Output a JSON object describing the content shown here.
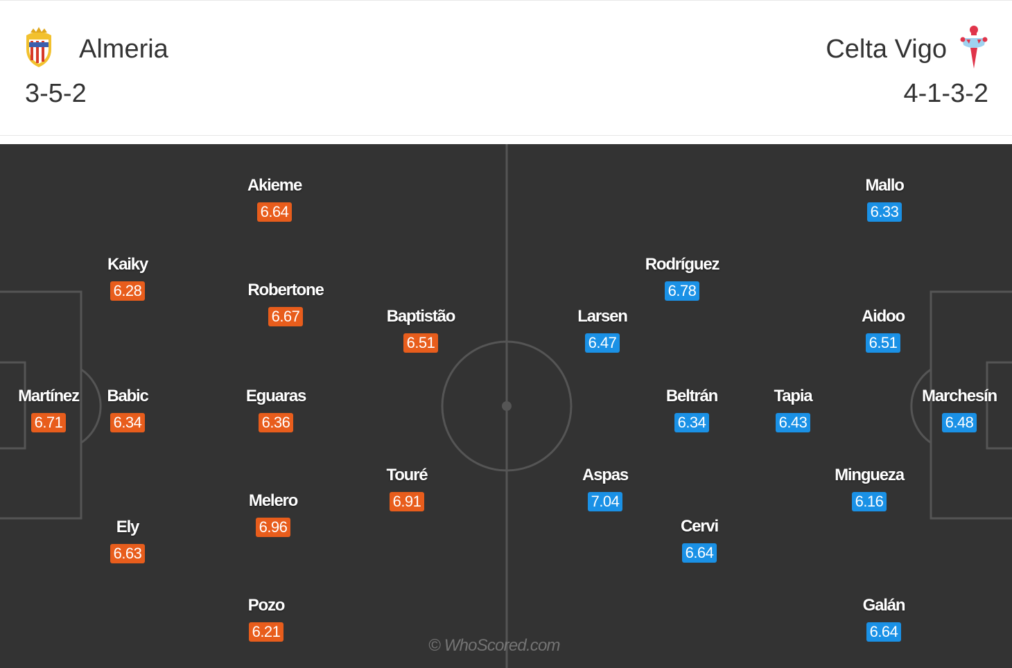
{
  "home": {
    "name": "Almeria",
    "formation": "3-5-2",
    "crest_icon": "almeria-crest-icon",
    "rating_color": "#e85d1c",
    "players": [
      {
        "name": "Martínez",
        "rating": "6.71"
      },
      {
        "name": "Kaiky",
        "rating": "6.28"
      },
      {
        "name": "Babic",
        "rating": "6.34"
      },
      {
        "name": "Ely",
        "rating": "6.63"
      },
      {
        "name": "Akieme",
        "rating": "6.64"
      },
      {
        "name": "Robertone",
        "rating": "6.67"
      },
      {
        "name": "Eguaras",
        "rating": "6.36"
      },
      {
        "name": "Melero",
        "rating": "6.96"
      },
      {
        "name": "Pozo",
        "rating": "6.21"
      },
      {
        "name": "Baptistão",
        "rating": "6.51"
      },
      {
        "name": "Touré",
        "rating": "6.91"
      }
    ]
  },
  "away": {
    "name": "Celta Vigo",
    "formation": "4-1-3-2",
    "crest_icon": "celta-vigo-crest-icon",
    "rating_color": "#1a91e6",
    "players": [
      {
        "name": "Marchesín",
        "rating": "6.48"
      },
      {
        "name": "Mallo",
        "rating": "6.33"
      },
      {
        "name": "Aidoo",
        "rating": "6.51"
      },
      {
        "name": "Mingueza",
        "rating": "6.16"
      },
      {
        "name": "Galán",
        "rating": "6.64"
      },
      {
        "name": "Tapia",
        "rating": "6.43"
      },
      {
        "name": "Rodríguez",
        "rating": "6.78"
      },
      {
        "name": "Beltrán",
        "rating": "6.34"
      },
      {
        "name": "Cervi",
        "rating": "6.64"
      },
      {
        "name": "Larsen",
        "rating": "6.47"
      },
      {
        "name": "Aspas",
        "rating": "7.04"
      }
    ]
  },
  "watermark": "© WhoScored.com"
}
